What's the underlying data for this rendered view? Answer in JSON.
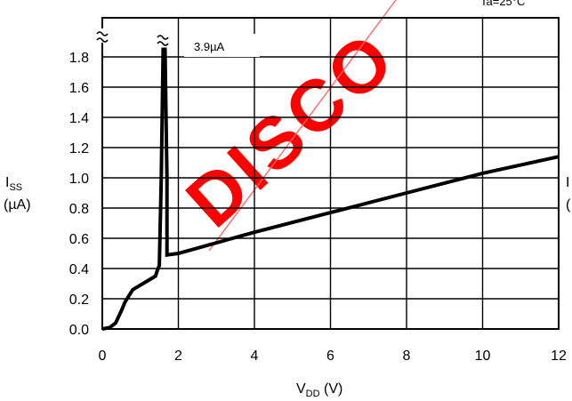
{
  "chart_data": {
    "type": "line",
    "condition": "Ta=25°C",
    "annotation": "3.9µA",
    "watermark": "DISCO",
    "xlabel": {
      "main": "V",
      "sub": "DD",
      "unit": " (V)"
    },
    "ylabel": {
      "main": "I",
      "sub": "SS",
      "unit": "(µA)"
    },
    "right_label": {
      "line1": "I",
      "line2": "("
    },
    "xlim": [
      0,
      12
    ],
    "ylim": [
      0,
      1.85
    ],
    "x_ticks": [
      "0",
      "2",
      "4",
      "6",
      "8",
      "10",
      "12"
    ],
    "y_ticks": [
      "0.0",
      "0.2",
      "0.4",
      "0.6",
      "0.8",
      "1.0",
      "1.2",
      "1.4",
      "1.6",
      "1.8"
    ],
    "grid": true,
    "series": [
      {
        "x": [
          0,
          0.2,
          0.35,
          0.5,
          0.6,
          0.8,
          1.0,
          1.2,
          1.4,
          1.45,
          1.5,
          1.55,
          1.6,
          1.65,
          1.7,
          1.7,
          2.0,
          4.0,
          6.0,
          8.0,
          10.0,
          12.0
        ],
        "y": [
          0,
          0.01,
          0.04,
          0.12,
          0.18,
          0.26,
          0.29,
          0.32,
          0.35,
          0.39,
          0.42,
          1.0,
          1.85,
          1.85,
          1.0,
          0.49,
          0.5,
          0.64,
          0.77,
          0.9,
          1.03,
          1.14
        ]
      }
    ]
  }
}
